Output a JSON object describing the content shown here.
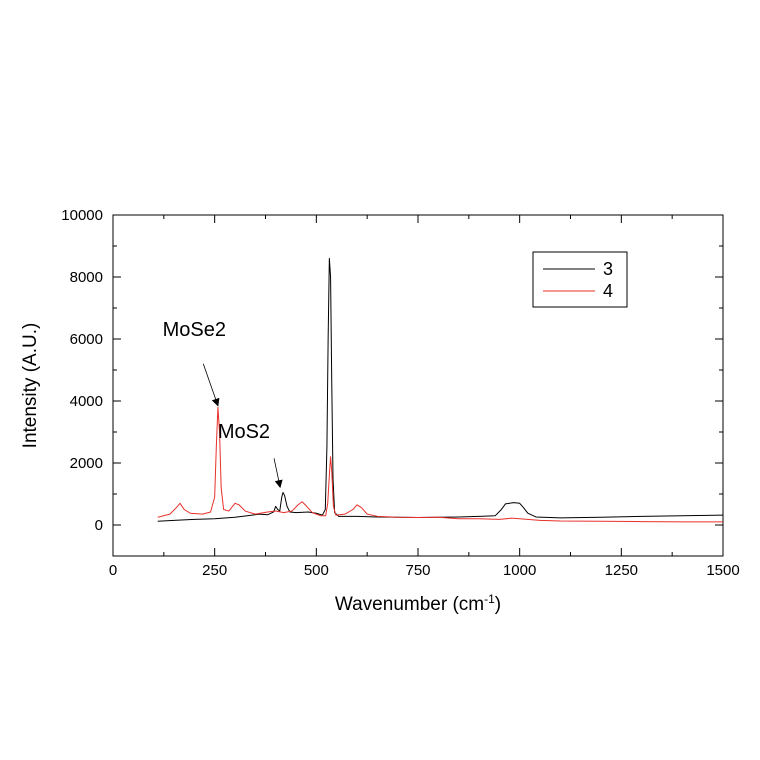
{
  "chart_data": {
    "type": "line",
    "title": "",
    "xlabel": "Wavenumber (cm",
    "xlabel_sup": "-1",
    "xlabel_close": ")",
    "ylabel": "Intensity (A.U.)",
    "xlim": [
      0,
      1500
    ],
    "ylim": [
      -1000,
      10000
    ],
    "x_ticks": [
      0,
      250,
      500,
      750,
      1000,
      1250,
      1500
    ],
    "y_ticks": [
      0,
      2000,
      4000,
      6000,
      8000,
      10000
    ],
    "grid": false,
    "legend_position": "top-right",
    "series": [
      {
        "name": "3",
        "color": "#000000",
        "points": [
          [
            110,
            120
          ],
          [
            150,
            150
          ],
          [
            200,
            180
          ],
          [
            250,
            200
          ],
          [
            300,
            250
          ],
          [
            330,
            300
          ],
          [
            360,
            350
          ],
          [
            380,
            330
          ],
          [
            395,
            420
          ],
          [
            400,
            600
          ],
          [
            405,
            500
          ],
          [
            410,
            450
          ],
          [
            415,
            900
          ],
          [
            418,
            1050
          ],
          [
            422,
            950
          ],
          [
            428,
            600
          ],
          [
            435,
            420
          ],
          [
            450,
            400
          ],
          [
            480,
            420
          ],
          [
            500,
            380
          ],
          [
            515,
            320
          ],
          [
            522,
            500
          ],
          [
            526,
            2500
          ],
          [
            529,
            6000
          ],
          [
            532,
            8600
          ],
          [
            535,
            8000
          ],
          [
            538,
            4500
          ],
          [
            541,
            1500
          ],
          [
            545,
            400
          ],
          [
            555,
            280
          ],
          [
            600,
            280
          ],
          [
            650,
            260
          ],
          [
            700,
            250
          ],
          [
            750,
            240
          ],
          [
            800,
            250
          ],
          [
            850,
            260
          ],
          [
            900,
            280
          ],
          [
            940,
            300
          ],
          [
            955,
            500
          ],
          [
            965,
            680
          ],
          [
            985,
            720
          ],
          [
            1000,
            700
          ],
          [
            1010,
            550
          ],
          [
            1020,
            380
          ],
          [
            1040,
            260
          ],
          [
            1100,
            230
          ],
          [
            1200,
            250
          ],
          [
            1300,
            280
          ],
          [
            1400,
            300
          ],
          [
            1500,
            320
          ]
        ]
      },
      {
        "name": "4",
        "color": "#e8302a",
        "points": [
          [
            110,
            250
          ],
          [
            140,
            350
          ],
          [
            155,
            550
          ],
          [
            165,
            700
          ],
          [
            175,
            500
          ],
          [
            190,
            380
          ],
          [
            220,
            350
          ],
          [
            240,
            420
          ],
          [
            250,
            900
          ],
          [
            254,
            2500
          ],
          [
            258,
            3800
          ],
          [
            262,
            3000
          ],
          [
            266,
            1200
          ],
          [
            272,
            500
          ],
          [
            285,
            450
          ],
          [
            300,
            700
          ],
          [
            310,
            650
          ],
          [
            325,
            450
          ],
          [
            350,
            350
          ],
          [
            380,
            420
          ],
          [
            400,
            450
          ],
          [
            420,
            400
          ],
          [
            440,
            450
          ],
          [
            455,
            650
          ],
          [
            465,
            750
          ],
          [
            475,
            620
          ],
          [
            490,
            400
          ],
          [
            510,
            300
          ],
          [
            523,
            300
          ],
          [
            528,
            700
          ],
          [
            532,
            1600
          ],
          [
            535,
            2200
          ],
          [
            538,
            1700
          ],
          [
            542,
            600
          ],
          [
            548,
            320
          ],
          [
            570,
            350
          ],
          [
            590,
            500
          ],
          [
            600,
            650
          ],
          [
            612,
            550
          ],
          [
            625,
            350
          ],
          [
            650,
            280
          ],
          [
            700,
            250
          ],
          [
            750,
            240
          ],
          [
            800,
            250
          ],
          [
            850,
            200
          ],
          [
            900,
            200
          ],
          [
            950,
            180
          ],
          [
            980,
            220
          ],
          [
            1000,
            200
          ],
          [
            1050,
            150
          ],
          [
            1100,
            130
          ],
          [
            1200,
            120
          ],
          [
            1300,
            110
          ],
          [
            1400,
            100
          ],
          [
            1500,
            100
          ]
        ]
      }
    ],
    "annotations": [
      {
        "text": "MoSe2",
        "x": 200,
        "y": 6100,
        "arrow_from": [
          222,
          5200
        ],
        "arrow_to": [
          258,
          3850
        ]
      },
      {
        "text": "MoS2",
        "x": 322,
        "y": 2800,
        "arrow_from": [
          396,
          2150
        ],
        "arrow_to": [
          411,
          1220
        ]
      }
    ]
  }
}
